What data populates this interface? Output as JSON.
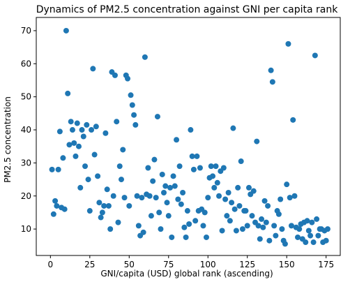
{
  "chart_data": {
    "type": "scatter",
    "title": "Dynamics of PM2.5 concentration against GNI per capita rank",
    "xlabel": "GNI/capita (USD) global rank (ascending)",
    "ylabel": "PM2.5 concentration",
    "xlim": [
      -9,
      184
    ],
    "ylim": [
      2,
      74
    ],
    "xticks": [
      0,
      25,
      50,
      75,
      100,
      125,
      150,
      175
    ],
    "yticks": [
      10,
      20,
      30,
      40,
      50,
      60,
      70
    ],
    "grid": false,
    "marker_color": "#1f77b4",
    "points": [
      [
        1,
        28
      ],
      [
        2,
        14.5
      ],
      [
        3,
        18.5
      ],
      [
        4,
        17
      ],
      [
        5,
        28
      ],
      [
        6,
        39.5
      ],
      [
        7,
        16.5
      ],
      [
        8,
        31.5
      ],
      [
        9,
        16
      ],
      [
        10,
        70
      ],
      [
        11,
        51
      ],
      [
        12,
        35.5
      ],
      [
        13,
        42.5
      ],
      [
        14,
        40
      ],
      [
        15,
        36
      ],
      [
        16,
        32
      ],
      [
        17,
        42
      ],
      [
        18,
        35
      ],
      [
        19,
        22.5
      ],
      [
        20,
        40
      ],
      [
        21,
        38
      ],
      [
        22,
        29
      ],
      [
        23,
        41.5
      ],
      [
        24,
        25
      ],
      [
        25,
        15.5
      ],
      [
        26,
        40
      ],
      [
        27,
        58.5
      ],
      [
        28,
        32.5
      ],
      [
        29,
        41
      ],
      [
        30,
        26
      ],
      [
        31,
        18
      ],
      [
        32,
        13.5
      ],
      [
        33,
        15
      ],
      [
        34,
        17
      ],
      [
        35,
        39
      ],
      [
        36,
        22
      ],
      [
        37,
        17
      ],
      [
        38,
        10
      ],
      [
        39,
        57.5
      ],
      [
        40,
        20
      ],
      [
        41,
        56.5
      ],
      [
        42,
        42.5
      ],
      [
        43,
        12
      ],
      [
        44,
        29
      ],
      [
        45,
        25
      ],
      [
        46,
        34
      ],
      [
        47,
        19.5
      ],
      [
        48,
        56.5
      ],
      [
        49,
        55.5
      ],
      [
        50,
        17
      ],
      [
        51,
        50.5
      ],
      [
        52,
        47.5
      ],
      [
        53,
        44.5
      ],
      [
        54,
        41.5
      ],
      [
        55,
        20
      ],
      [
        56,
        11
      ],
      [
        57,
        8
      ],
      [
        58,
        19.5
      ],
      [
        59,
        9
      ],
      [
        60,
        62
      ],
      [
        61,
        20.5
      ],
      [
        62,
        28.5
      ],
      [
        63,
        20
      ],
      [
        64,
        14
      ],
      [
        65,
        24.5
      ],
      [
        66,
        31
      ],
      [
        67,
        19.5
      ],
      [
        68,
        44
      ],
      [
        69,
        15
      ],
      [
        70,
        10
      ],
      [
        71,
        26.5
      ],
      [
        72,
        21
      ],
      [
        73,
        23
      ],
      [
        74,
        18
      ],
      [
        75,
        14
      ],
      [
        76,
        22.5
      ],
      [
        77,
        7.5
      ],
      [
        78,
        26
      ],
      [
        79,
        23
      ],
      [
        80,
        37
      ],
      [
        81,
        19
      ],
      [
        82,
        29
      ],
      [
        83,
        17.5
      ],
      [
        84,
        21
      ],
      [
        85,
        10.5
      ],
      [
        86,
        7.5
      ],
      [
        87,
        15.5
      ],
      [
        88,
        11.5
      ],
      [
        89,
        40
      ],
      [
        90,
        32
      ],
      [
        91,
        28
      ],
      [
        92,
        12.5
      ],
      [
        93,
        32
      ],
      [
        94,
        15.5
      ],
      [
        95,
        28.5
      ],
      [
        96,
        16
      ],
      [
        97,
        11
      ],
      [
        98,
        15
      ],
      [
        99,
        7.5
      ],
      [
        100,
        19.5
      ],
      [
        101,
        25.5
      ],
      [
        102,
        29
      ],
      [
        103,
        26
      ],
      [
        104,
        22.5
      ],
      [
        105,
        29
      ],
      [
        106,
        24
      ],
      [
        107,
        20
      ],
      [
        108,
        27.5
      ],
      [
        109,
        9.5
      ],
      [
        110,
        28.5
      ],
      [
        111,
        19
      ],
      [
        112,
        14
      ],
      [
        113,
        21
      ],
      [
        114,
        12.5
      ],
      [
        115,
        18
      ],
      [
        116,
        40.5
      ],
      [
        117,
        16
      ],
      [
        118,
        9.5
      ],
      [
        119,
        22.5
      ],
      [
        120,
        17
      ],
      [
        121,
        30.5
      ],
      [
        122,
        10
      ],
      [
        123,
        15.5
      ],
      [
        124,
        15.5
      ],
      [
        125,
        11
      ],
      [
        126,
        22.5
      ],
      [
        127,
        20.5
      ],
      [
        128,
        14
      ],
      [
        129,
        21.5
      ],
      [
        130,
        12
      ],
      [
        131,
        36.5
      ],
      [
        132,
        11
      ],
      [
        133,
        7
      ],
      [
        134,
        13
      ],
      [
        135,
        10.5
      ],
      [
        136,
        18.5
      ],
      [
        137,
        12
      ],
      [
        138,
        17
      ],
      [
        139,
        6.5
      ],
      [
        140,
        58
      ],
      [
        141,
        54.5
      ],
      [
        142,
        11
      ],
      [
        143,
        8
      ],
      [
        144,
        15.5
      ],
      [
        145,
        14.5
      ],
      [
        146,
        19
      ],
      [
        147,
        10
      ],
      [
        148,
        6.5
      ],
      [
        149,
        5.5
      ],
      [
        150,
        23.5
      ],
      [
        151,
        66
      ],
      [
        152,
        19.5
      ],
      [
        153,
        11
      ],
      [
        154,
        43
      ],
      [
        155,
        20
      ],
      [
        156,
        10.5
      ],
      [
        157,
        7.5
      ],
      [
        158,
        10
      ],
      [
        159,
        11.5
      ],
      [
        160,
        7
      ],
      [
        161,
        12
      ],
      [
        162,
        6
      ],
      [
        163,
        12.5
      ],
      [
        164,
        9.5
      ],
      [
        165,
        8
      ],
      [
        166,
        12
      ],
      [
        167,
        6
      ],
      [
        168,
        62.5
      ],
      [
        169,
        13
      ],
      [
        170,
        8
      ],
      [
        171,
        10
      ],
      [
        172,
        10
      ],
      [
        173,
        6
      ],
      [
        174,
        9.5
      ],
      [
        175,
        6.5
      ],
      [
        176,
        10
      ]
    ]
  }
}
